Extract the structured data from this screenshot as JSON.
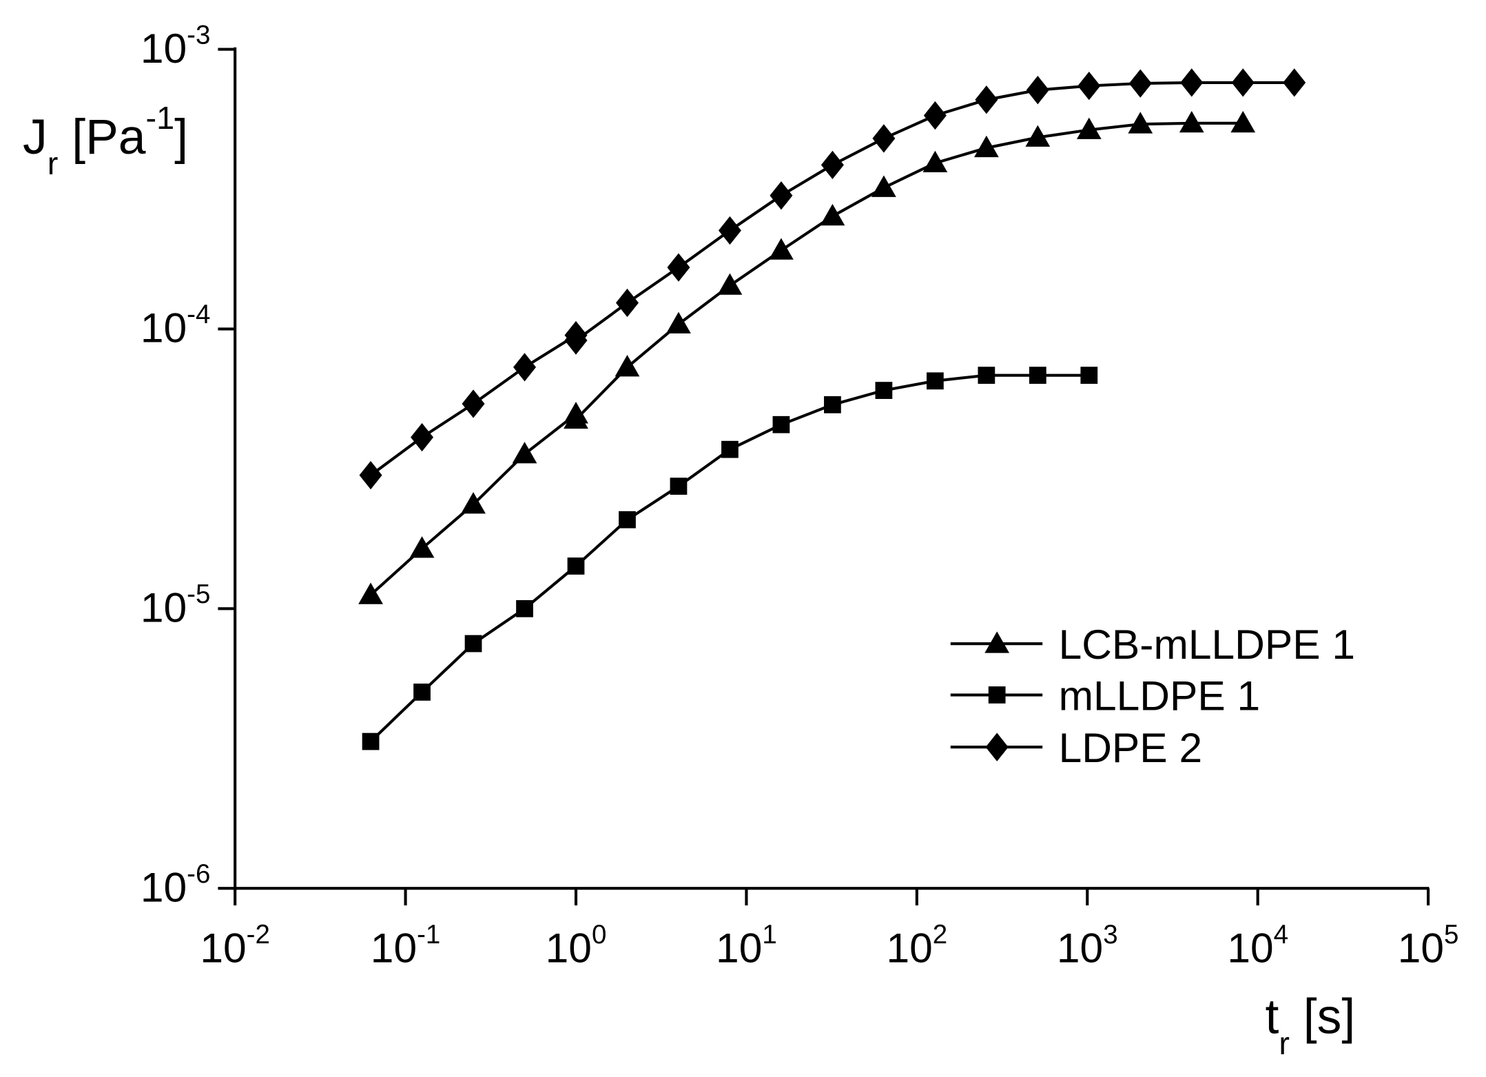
{
  "chart_data": {
    "type": "line",
    "title": "",
    "xlabel": "t_r [s]",
    "ylabel": "J_r [Pa^-1]",
    "xlabel_parts": {
      "main": "t",
      "sub": "r",
      "unit": " [s]"
    },
    "ylabel_parts": {
      "main": "J",
      "sub": "r",
      "unit_pre": " [Pa",
      "unit_sup": "-1",
      "unit_post": "]"
    },
    "x_scale": "log",
    "y_scale": "log",
    "xlim": [
      0.01,
      100000
    ],
    "ylim": [
      1e-06,
      0.001
    ],
    "x_ticks": [
      {
        "base": "10",
        "exp": "-2",
        "value": 0.01
      },
      {
        "base": "10",
        "exp": "-1",
        "value": 0.1
      },
      {
        "base": "10",
        "exp": "0",
        "value": 1
      },
      {
        "base": "10",
        "exp": "1",
        "value": 10
      },
      {
        "base": "10",
        "exp": "2",
        "value": 100
      },
      {
        "base": "10",
        "exp": "3",
        "value": 1000
      },
      {
        "base": "10",
        "exp": "4",
        "value": 10000
      },
      {
        "base": "10",
        "exp": "5",
        "value": 100000
      }
    ],
    "y_ticks": [
      {
        "base": "10",
        "exp": "-6",
        "value": 1e-06
      },
      {
        "base": "10",
        "exp": "-5",
        "value": 1e-05
      },
      {
        "base": "10",
        "exp": "-4",
        "value": 0.0001
      },
      {
        "base": "10",
        "exp": "-3",
        "value": 0.001
      }
    ],
    "grid": false,
    "legend_position": "lower right (inside)",
    "series": [
      {
        "name": "LCB-mLLDPE 1",
        "marker": "triangle",
        "color": "#000000",
        "x": [
          0.0625,
          0.125,
          0.25,
          0.5,
          1,
          1,
          2,
          4,
          8,
          16,
          32,
          64,
          128,
          256,
          512,
          1024,
          2048,
          4096,
          8192
        ],
        "y": [
          1.12e-05,
          1.64e-05,
          2.36e-05,
          3.57e-05,
          4.96e-05,
          4.75e-05,
          7.3e-05,
          0.000104,
          0.000143,
          0.000191,
          0.000253,
          0.00032,
          0.000392,
          0.000444,
          0.000484,
          0.000515,
          0.00054,
          0.000544,
          0.000544
        ]
      },
      {
        "name": "mLLDPE 1",
        "marker": "square",
        "color": "#000000",
        "x": [
          0.0625,
          0.125,
          0.25,
          0.5,
          1,
          2,
          4,
          8,
          16,
          32,
          64,
          128,
          256,
          512,
          1024
        ],
        "y": [
          3.35e-06,
          5.03e-06,
          7.5e-06,
          1e-05,
          1.42e-05,
          2.08e-05,
          2.74e-05,
          3.71e-05,
          4.55e-05,
          5.36e-05,
          6.03e-05,
          6.52e-05,
          6.83e-05,
          6.83e-05,
          6.83e-05
        ]
      },
      {
        "name": "LDPE 2",
        "marker": "diamond",
        "color": "#000000",
        "x": [
          0.0625,
          0.125,
          0.25,
          0.5,
          1,
          1,
          2,
          4,
          8,
          16,
          32,
          64,
          128,
          256,
          512,
          1024,
          2048,
          4096,
          8192,
          16384
        ],
        "y": [
          3e-05,
          4.1e-05,
          5.4e-05,
          7.3e-05,
          9.5e-05,
          9.1e-05,
          0.000124,
          0.000166,
          0.000225,
          0.0003,
          0.000386,
          0.00048,
          0.00058,
          0.00066,
          0.000715,
          0.00074,
          0.000755,
          0.00076,
          0.00076,
          0.00076
        ]
      }
    ]
  },
  "legend": {
    "items": [
      {
        "label": "LCB-mLLDPE 1",
        "marker": "triangle"
      },
      {
        "label": "mLLDPE 1",
        "marker": "square"
      },
      {
        "label": "LDPE 2",
        "marker": "diamond"
      }
    ]
  }
}
